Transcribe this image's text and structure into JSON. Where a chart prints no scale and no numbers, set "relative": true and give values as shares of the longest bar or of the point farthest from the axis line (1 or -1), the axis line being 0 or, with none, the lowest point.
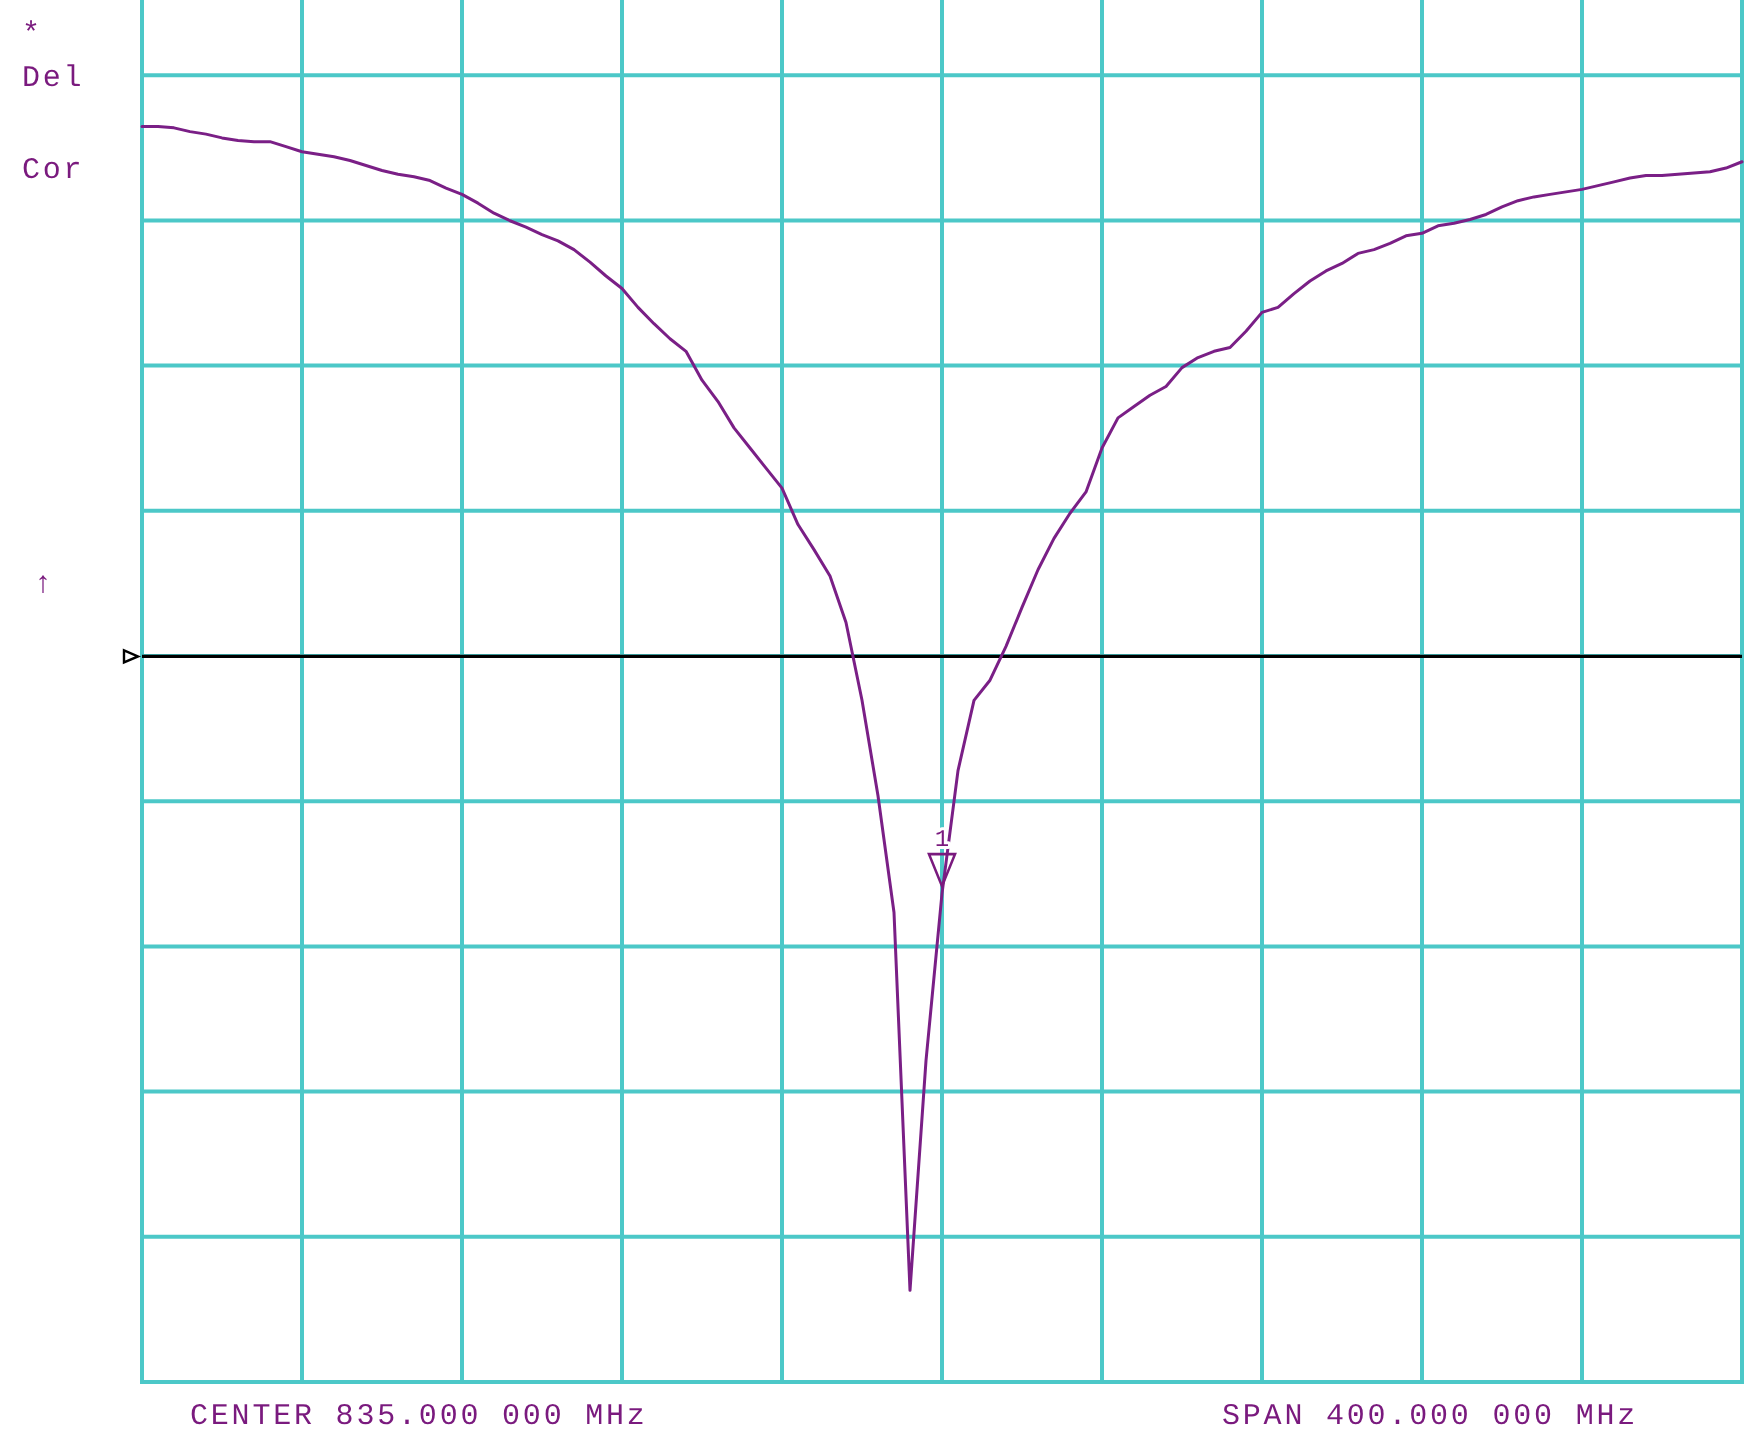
{
  "chart_data": {
    "type": "line",
    "relative": true,
    "categories": [
      null,
      null,
      null,
      null,
      null,
      null,
      null,
      null,
      null,
      null,
      null,
      null,
      null,
      null,
      null,
      null,
      null,
      null,
      null,
      null,
      null,
      null,
      null,
      null,
      null,
      null,
      null,
      null,
      null,
      null,
      null,
      null,
      null,
      null,
      null,
      null,
      null,
      null,
      null,
      null,
      null,
      null,
      null,
      null,
      null,
      null,
      null,
      null,
      null,
      null,
      null,
      null,
      null,
      null,
      null,
      null,
      null,
      null,
      null,
      null,
      null,
      null,
      null,
      null,
      null,
      null,
      null,
      null,
      null,
      null,
      null,
      null,
      null,
      null,
      null,
      null,
      null,
      null,
      null,
      null,
      null,
      null,
      null,
      null,
      null,
      null,
      null,
      null,
      null,
      null,
      null,
      null,
      null,
      null,
      null,
      null,
      null,
      null,
      null,
      null,
      null
    ],
    "values": [
      1,
      1,
      0.999,
      0.996,
      0.994,
      0.991,
      0.989,
      0.988,
      0.988,
      0.984,
      0.98,
      0.978,
      0.976,
      0.973,
      0.969,
      0.965,
      0.962,
      0.96,
      0.957,
      0.951,
      0.946,
      0.939,
      0.931,
      0.925,
      0.92,
      0.914,
      0.909,
      0.902,
      0.892,
      0.881,
      0.871,
      0.856,
      0.843,
      0.831,
      0.821,
      0.798,
      0.781,
      0.76,
      0.744,
      0.728,
      0.712,
      0.683,
      0.663,
      0.642,
      0.605,
      0.543,
      0.467,
      0.374,
      0.073,
      0.256,
      0.389,
      0.487,
      0.543,
      0.559,
      0.586,
      0.617,
      0.647,
      0.672,
      0.692,
      0.709,
      0.744,
      0.768,
      0.777,
      0.786,
      0.793,
      0.808,
      0.816,
      0.821,
      0.824,
      0.837,
      0.852,
      0.856,
      0.867,
      0.877,
      0.885,
      0.891,
      0.899,
      0.902,
      0.907,
      0.913,
      0.915,
      0.921,
      0.923,
      0.926,
      0.93,
      0.936,
      0.941,
      0.944,
      0.946,
      0.948,
      0.95,
      0.953,
      0.956,
      0.959,
      0.961,
      0.961,
      0.962,
      0.963,
      0.964,
      0.967,
      0.972
    ],
    "color": "#7a1f86",
    "grid": true,
    "ref_lines": [
      {
        "axis": "y",
        "value": 0.578,
        "color": "#000000"
      }
    ],
    "annotations": [
      "*",
      "Del",
      "Cor",
      "↑",
      "CENTER 835.000 000 MHz",
      "SPAN 400.000 000 MHz",
      {
        "text": "1",
        "y": 0.395
      }
    ]
  }
}
